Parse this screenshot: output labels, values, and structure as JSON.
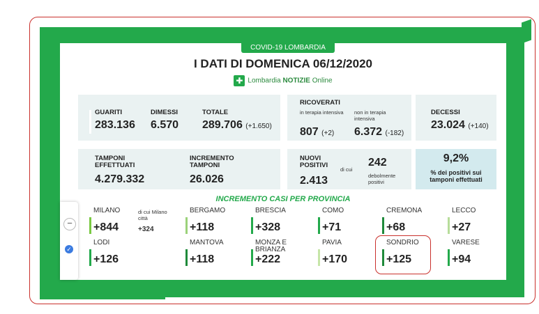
{
  "header": {
    "tag": "COVID-19 LOMBARDIA",
    "title": "I DATI DI DOMENICA 06/12/2020",
    "brand_prefix": "Lombardia",
    "brand_main": "NOTIZIE",
    "brand_suffix": "Online"
  },
  "summary": {
    "guariti": {
      "label": "GUARITI",
      "value": "283.136"
    },
    "dimessi": {
      "label": "DIMESSI",
      "value": "6.570"
    },
    "totale": {
      "label": "TOTALE",
      "value": "289.706",
      "delta": "(+1.650)"
    },
    "ricoverati": {
      "label": "RICOVERATI",
      "intensive_label": "in terapia intensiva",
      "intensive_value": "807",
      "intensive_delta": "(+2)",
      "non_intensive_label": "non in terapia intensiva",
      "non_intensive_value": "6.372",
      "non_intensive_delta": "(-182)"
    },
    "decessi": {
      "label": "DECESSI",
      "value": "23.024",
      "delta": "(+140)"
    }
  },
  "tests": {
    "tamponi": {
      "label": "TAMPONI EFFETTUATI",
      "value": "4.279.332"
    },
    "incremento": {
      "label": "INCREMENTO TAMPONI",
      "value": "26.026"
    },
    "nuovi": {
      "label": "NUOVI POSITIVI",
      "value": "2.413",
      "dicui": "di cui",
      "deboli_value": "242",
      "deboli_label": "debolmente positivi"
    },
    "percent": {
      "value": "9,2%",
      "label": "% dei positivi sui tamponi effettuati"
    }
  },
  "provinces": {
    "title": "INCREMENTO CASI PER PROVINCIA",
    "milano_note": "di cui Milano città",
    "milano_note_value": "+324",
    "items": [
      {
        "name": "MILANO",
        "value": "+844",
        "color": "#7ac943"
      },
      {
        "name": "BERGAMO",
        "value": "+118",
        "color": "#9bd27a"
      },
      {
        "name": "BRESCIA",
        "value": "+328",
        "color": "#23a94b"
      },
      {
        "name": "COMO",
        "value": "+71",
        "color": "#23a94b"
      },
      {
        "name": "CREMONA",
        "value": "+68",
        "color": "#1f8a3b"
      },
      {
        "name": "LECCO",
        "value": "+27",
        "color": "#b7dd9a"
      },
      {
        "name": "LODI",
        "value": "+126",
        "color": "#23a94b"
      },
      {
        "name": "MANTOVA",
        "value": "+118",
        "color": "#1f8a3b"
      },
      {
        "name": "MONZA E BRIANZA",
        "value": "+222",
        "color": "#23a94b"
      },
      {
        "name": "PAVIA",
        "value": "+170",
        "color": "#c6e6a8"
      },
      {
        "name": "SONDRIO",
        "value": "+125",
        "color": "#1f8a3b"
      },
      {
        "name": "VARESE",
        "value": "+94",
        "color": "#23a94b"
      }
    ]
  },
  "icons": {
    "minus": "minus-icon",
    "badge": "verified-badge-icon"
  }
}
